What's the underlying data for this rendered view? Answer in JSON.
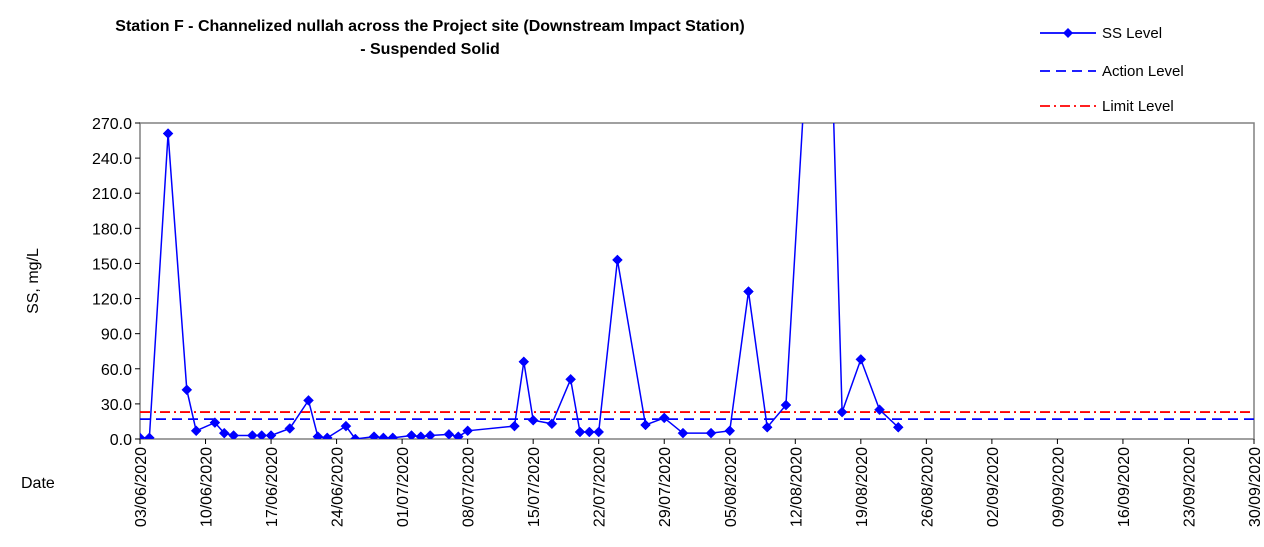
{
  "chart_data": {
    "type": "line",
    "title_line1": "Station F - Channelized nullah across the Project site (Downstream Impact Station)",
    "title_line2": "- Suspended Solid",
    "ylabel": "SS, mg/L",
    "xlabel": "Date",
    "ylim": [
      0,
      270
    ],
    "y_ticks": [
      "0.0",
      "30.0",
      "60.0",
      "90.0",
      "120.0",
      "150.0",
      "180.0",
      "210.0",
      "240.0",
      "270.0"
    ],
    "x_ticks": [
      "03/06/2020",
      "10/06/2020",
      "17/06/2020",
      "24/06/2020",
      "01/07/2020",
      "08/07/2020",
      "15/07/2020",
      "22/07/2020",
      "29/07/2020",
      "05/08/2020",
      "12/08/2020",
      "19/08/2020",
      "26/08/2020",
      "02/09/2020",
      "09/09/2020",
      "16/09/2020",
      "23/09/2020",
      "30/09/2020"
    ],
    "x_range": [
      "03/06/2020",
      "30/09/2020"
    ],
    "grid": false,
    "legend_position": "top-right",
    "series": [
      {
        "name": "SS Level",
        "color": "#0000ff",
        "marker": "diamond",
        "points": [
          [
            "03/06/2020",
            1
          ],
          [
            "04/06/2020",
            1
          ],
          [
            "06/06/2020",
            261
          ],
          [
            "08/06/2020",
            42
          ],
          [
            "09/06/2020",
            7
          ],
          [
            "11/06/2020",
            14
          ],
          [
            "12/06/2020",
            5
          ],
          [
            "13/06/2020",
            3
          ],
          [
            "15/06/2020",
            3
          ],
          [
            "16/06/2020",
            3
          ],
          [
            "17/06/2020",
            3
          ],
          [
            "19/06/2020",
            9
          ],
          [
            "21/06/2020",
            33
          ],
          [
            "22/06/2020",
            2
          ],
          [
            "23/06/2020",
            1
          ],
          [
            "25/06/2020",
            11
          ],
          [
            "26/06/2020",
            0
          ],
          [
            "28/06/2020",
            2
          ],
          [
            "29/06/2020",
            1
          ],
          [
            "30/06/2020",
            1
          ],
          [
            "02/07/2020",
            3
          ],
          [
            "03/07/2020",
            2
          ],
          [
            "04/07/2020",
            3
          ],
          [
            "06/07/2020",
            4
          ],
          [
            "07/07/2020",
            2
          ],
          [
            "08/07/2020",
            7
          ],
          [
            "13/07/2020",
            11
          ],
          [
            "14/07/2020",
            66
          ],
          [
            "15/07/2020",
            16
          ],
          [
            "17/07/2020",
            13
          ],
          [
            "19/07/2020",
            51
          ],
          [
            "20/07/2020",
            6
          ],
          [
            "21/07/2020",
            6
          ],
          [
            "22/07/2020",
            6
          ],
          [
            "24/07/2020",
            153
          ],
          [
            "27/07/2020",
            12
          ],
          [
            "29/07/2020",
            18
          ],
          [
            "31/07/2020",
            5
          ],
          [
            "03/08/2020",
            5
          ],
          [
            "05/08/2020",
            7
          ],
          [
            "07/08/2020",
            126
          ],
          [
            "09/08/2020",
            10
          ],
          [
            "11/08/2020",
            29
          ],
          [
            "13/08/2020",
            300
          ],
          [
            "16/08/2020",
            300
          ],
          [
            "17/08/2020",
            23
          ],
          [
            "19/08/2020",
            68
          ],
          [
            "21/08/2020",
            25
          ],
          [
            "23/08/2020",
            10
          ]
        ]
      },
      {
        "name": "Action Level",
        "color": "#0000ff",
        "style": "dashed",
        "value": 17
      },
      {
        "name": "Limit Level",
        "color": "#ff0000",
        "style": "dash-dot",
        "value": 23
      }
    ]
  }
}
